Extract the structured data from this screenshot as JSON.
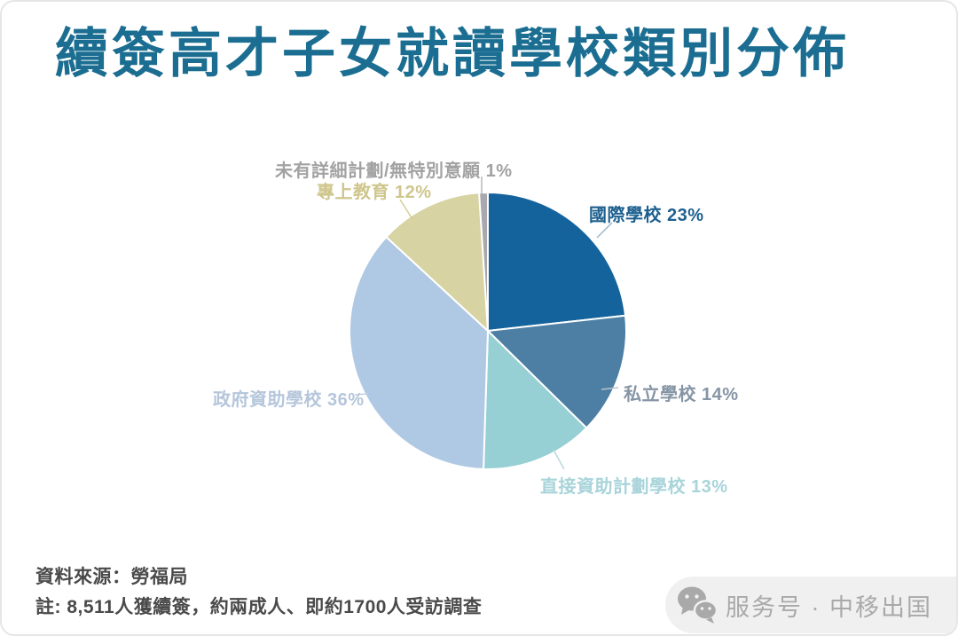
{
  "title": "續簽高才子女就讀學校類別分佈",
  "chart_data": {
    "type": "pie",
    "title": "續簽高才子女就讀學校類別分佈",
    "start_angle_deg": 0,
    "direction": "clockwise",
    "legend_position": "callout-labels",
    "slices": [
      {
        "label": "國際學校",
        "value": 23,
        "text": "國際學校 23%",
        "color": "#15639d",
        "label_color": "#1d608f"
      },
      {
        "label": "私立學校",
        "value": 14,
        "text": "私立學校 14%",
        "color": "#4d7fa4",
        "label_color": "#8695a6"
      },
      {
        "label": "直接資助計劃學校",
        "value": 13,
        "text": "直接資助計劃學校 13%",
        "color": "#96cfd4",
        "label_color": "#a8d4da"
      },
      {
        "label": "政府資助學校",
        "value": 36,
        "text": "政府資助學校 36%",
        "color": "#afc8e3",
        "label_color": "#b5c6db"
      },
      {
        "label": "專上教育",
        "value": 12,
        "text": "專上教育 12%",
        "color": "#d7d3a2",
        "label_color": "#cfc68d"
      },
      {
        "label": "未有詳細計劃/無特別意願",
        "value": 1,
        "text": "未有詳細計劃/無特別意願 1%",
        "color": "#a8a8ae",
        "label_color": "#a2a2a2"
      }
    ]
  },
  "footer": {
    "source": "資料來源：勞福局",
    "note": "註: 8,511人獲續簽，約兩成人、即約1700人受訪調查"
  },
  "watermark": {
    "icon": "wechat-icon",
    "text": "服务号 · 中移出国"
  },
  "colors": {
    "title": "#1b6e91",
    "footer_text": "#4a4a4a",
    "watermark_bg": "#f0f0f0",
    "watermark_text": "#a9a9a9",
    "background": "#ffffff"
  }
}
